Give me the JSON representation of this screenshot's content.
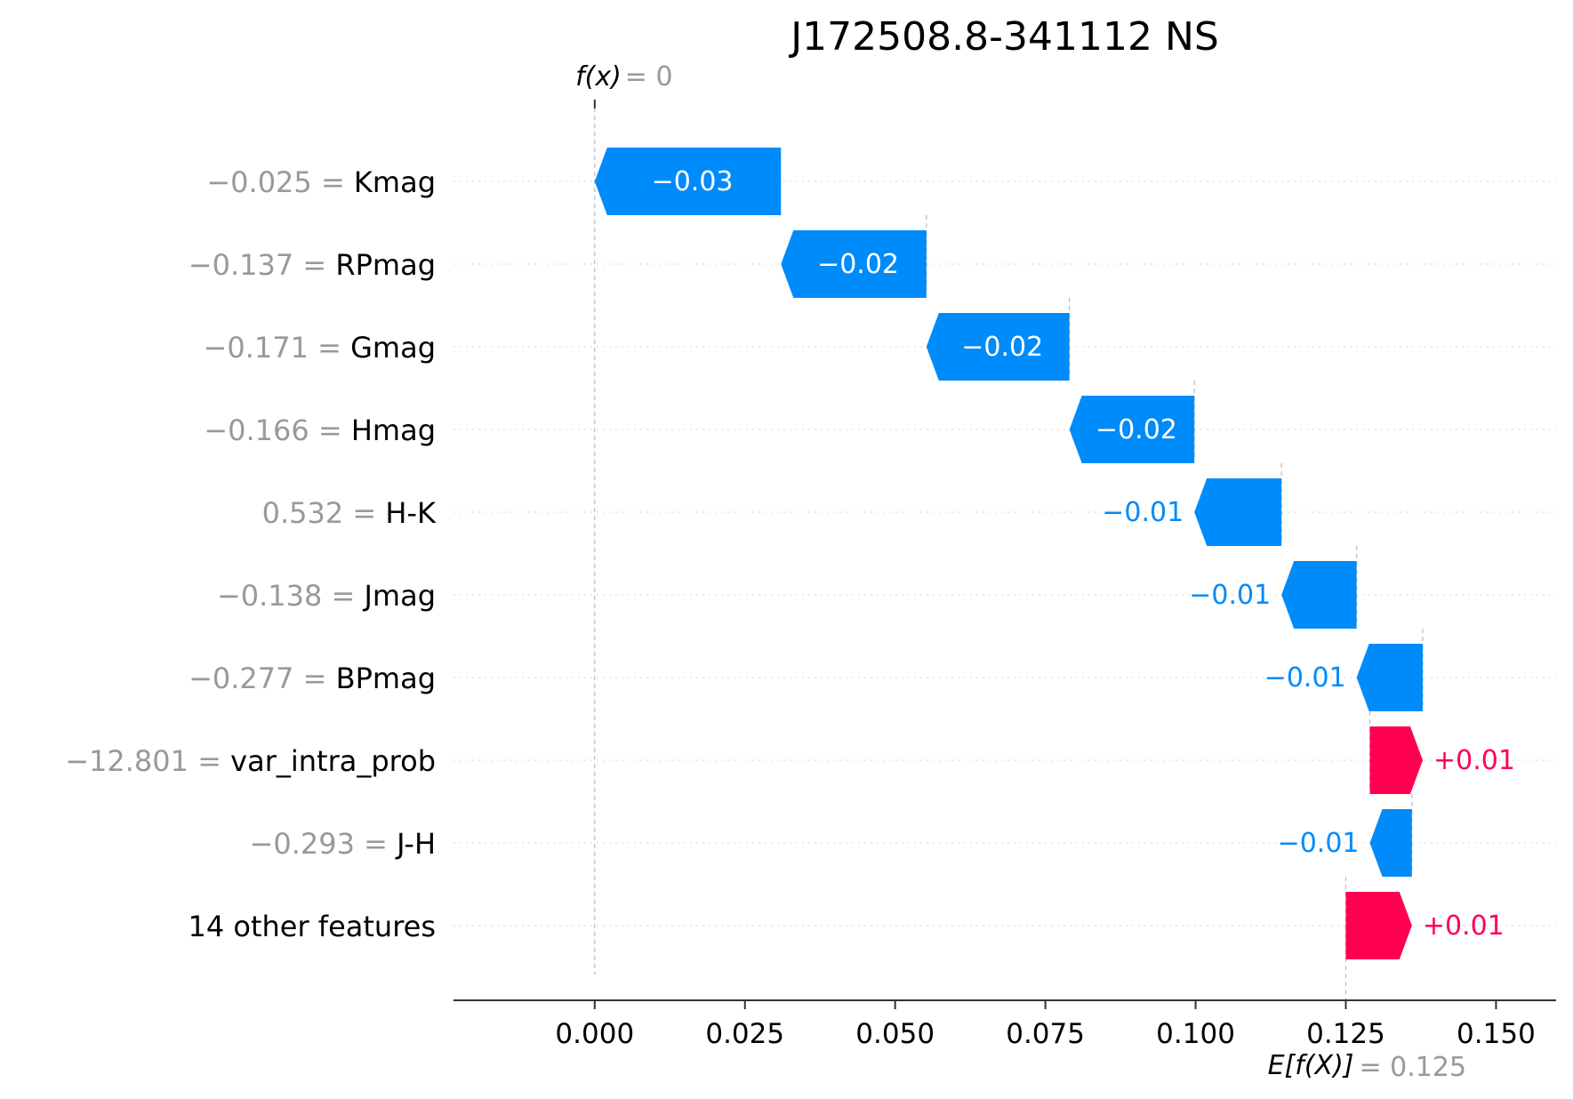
{
  "chart_data": {
    "type": "waterfall",
    "title": "J172508.8-341112 NS",
    "fx_label": "f(x)",
    "fx_value": "= 0",
    "base_label": "E[f(X)]",
    "base_value": "= 0.125",
    "base_value_num": 0.125,
    "final_value_num": 0.0,
    "xlim": [
      -0.0235,
      0.16
    ],
    "xticks": [
      0.0,
      0.025,
      0.05,
      0.075,
      0.1,
      0.125,
      0.15
    ],
    "xtick_labels": [
      "0.000",
      "0.025",
      "0.050",
      "0.075",
      "0.100",
      "0.125",
      "0.150"
    ],
    "features": [
      {
        "value": "−0.025 =",
        "name": "Kmag",
        "start": 0.031,
        "end": 0.0,
        "label": "−0.03"
      },
      {
        "value": "−0.137 =",
        "name": "RPmag",
        "start": 0.0552,
        "end": 0.031,
        "label": "−0.02"
      },
      {
        "value": "−0.171 =",
        "name": "Gmag",
        "start": 0.079,
        "end": 0.0552,
        "label": "−0.02"
      },
      {
        "value": "−0.166 =",
        "name": "Hmag",
        "start": 0.0998,
        "end": 0.079,
        "label": "−0.02"
      },
      {
        "value": "0.532 =",
        "name": "H-K",
        "start": 0.1143,
        "end": 0.0998,
        "label": "−0.01"
      },
      {
        "value": "−0.138 =",
        "name": "Jmag",
        "start": 0.1268,
        "end": 0.1143,
        "label": "−0.01"
      },
      {
        "value": "−0.277 =",
        "name": "BPmag",
        "start": 0.1378,
        "end": 0.1268,
        "label": "−0.01"
      },
      {
        "value": "−12.801 =",
        "name": "var_intra_prob",
        "start": 0.129,
        "end": 0.1378,
        "label": "+0.01"
      },
      {
        "value": "−0.293 =",
        "name": "J-H",
        "start": 0.136,
        "end": 0.129,
        "label": "−0.01"
      },
      {
        "value": "",
        "name": "14 other features",
        "start": 0.125,
        "end": 0.136,
        "label": "+0.01"
      }
    ],
    "colors": {
      "positive": "#ff0051",
      "negative": "#008bfb",
      "muted": "#999999",
      "text": "#000000"
    }
  }
}
